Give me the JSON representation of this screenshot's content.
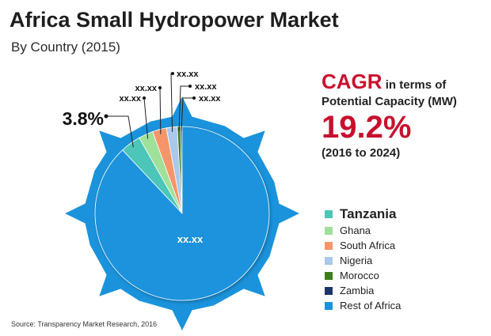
{
  "header": {
    "title": "Africa Small Hydropower Market",
    "subtitle": "By Country (2015)"
  },
  "cagr": {
    "word": "CAGR",
    "terms": " in terms of",
    "metric": "Potential Capacity (MW)",
    "value": "19.2%",
    "period": "(2016 to 2024)"
  },
  "source": "Source: Transparency Market Research, 2016",
  "chart_data": {
    "type": "pie",
    "categories": [
      "Tanzania",
      "Ghana",
      "South Africa",
      "Nigeria",
      "Morocco",
      "Zambia",
      "Rest of Africa"
    ],
    "values": [
      3.8,
      2.7,
      2.6,
      2.0,
      0.6,
      0.3,
      88.0
    ],
    "colors": [
      "#4cc6b8",
      "#9fe09a",
      "#f7956a",
      "#a9c8ea",
      "#3d7d1e",
      "#1b3768",
      "#1a93dc"
    ],
    "data_labels": [
      "3.8%",
      "xx.xx",
      "xx.xx",
      "xx.xx",
      "xx.xx",
      "xx.xx",
      "xx.xx"
    ],
    "legend_position": "right",
    "grid": false
  }
}
